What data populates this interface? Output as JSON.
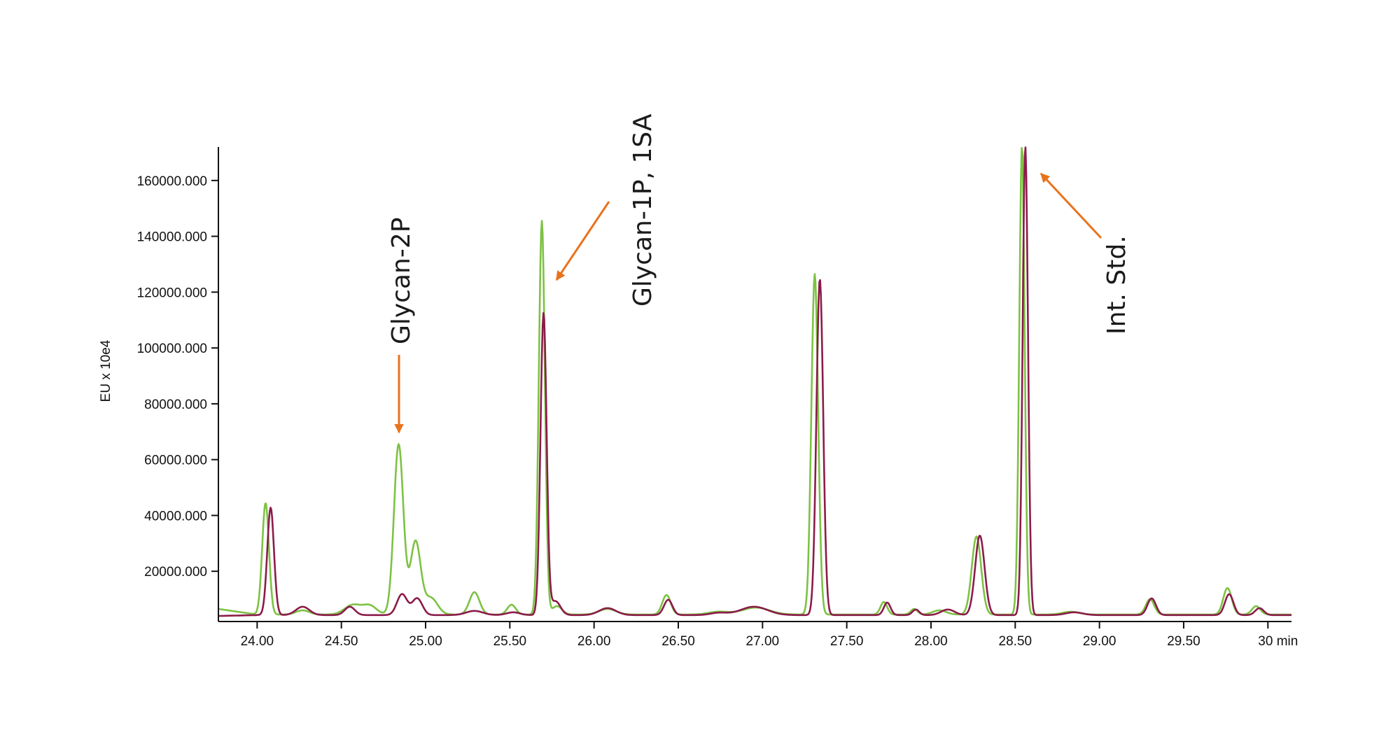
{
  "chart_data": {
    "type": "line",
    "title": "",
    "xlabel": "",
    "ylabel": "EU x 10e4",
    "x_unit": "min",
    "xlim": [
      23.77,
      30.14
    ],
    "ylim": [
      2000,
      172000
    ],
    "x_ticks": [
      {
        "value": 24.0,
        "label": "24.00"
      },
      {
        "value": 24.5,
        "label": "24.50"
      },
      {
        "value": 25.0,
        "label": "25.00"
      },
      {
        "value": 25.5,
        "label": "25.50"
      },
      {
        "value": 26.0,
        "label": "26.00"
      },
      {
        "value": 26.5,
        "label": "26.50"
      },
      {
        "value": 27.0,
        "label": "27.00"
      },
      {
        "value": 27.5,
        "label": "27.50"
      },
      {
        "value": 28.0,
        "label": "28.00"
      },
      {
        "value": 28.5,
        "label": "28.50"
      },
      {
        "value": 29.0,
        "label": "29.00"
      },
      {
        "value": 29.5,
        "label": "29.50"
      },
      {
        "value": 30.0,
        "label": "30 min"
      }
    ],
    "y_ticks": [
      {
        "value": 20000,
        "label": "20000.000"
      },
      {
        "value": 40000,
        "label": "40000.000"
      },
      {
        "value": 60000,
        "label": "60000.000"
      },
      {
        "value": 80000,
        "label": "80000.000"
      },
      {
        "value": 100000,
        "label": "100000.000"
      },
      {
        "value": 120000,
        "label": "120000.000"
      },
      {
        "value": 140000,
        "label": "140000.000"
      },
      {
        "value": 160000,
        "label": "160000.000"
      }
    ],
    "grid": false,
    "series": [
      {
        "color": "#7dc243",
        "baseline": 4500,
        "start_value": 6500,
        "end_value": 4300,
        "peaks": [
          {
            "x": 24.05,
            "h": 40000,
            "w": 0.02
          },
          {
            "x": 24.27,
            "h": 1500,
            "w": 0.04
          },
          {
            "x": 24.57,
            "h": 3500,
            "w": 0.05
          },
          {
            "x": 24.67,
            "h": 3000,
            "w": 0.04
          },
          {
            "x": 24.84,
            "h": 61000,
            "w": 0.028
          },
          {
            "x": 24.94,
            "h": 26000,
            "w": 0.03
          },
          {
            "x": 25.03,
            "h": 6000,
            "w": 0.04
          },
          {
            "x": 25.29,
            "h": 8000,
            "w": 0.03
          },
          {
            "x": 25.51,
            "h": 3500,
            "w": 0.025
          },
          {
            "x": 25.69,
            "h": 141000,
            "w": 0.018
          },
          {
            "x": 25.78,
            "h": 3000,
            "w": 0.03
          },
          {
            "x": 26.08,
            "h": 2000,
            "w": 0.05
          },
          {
            "x": 26.43,
            "h": 7000,
            "w": 0.025
          },
          {
            "x": 26.74,
            "h": 1000,
            "w": 0.06
          },
          {
            "x": 26.96,
            "h": 2500,
            "w": 0.08
          },
          {
            "x": 27.31,
            "h": 122000,
            "w": 0.02
          },
          {
            "x": 27.72,
            "h": 4500,
            "w": 0.02
          },
          {
            "x": 27.9,
            "h": 2000,
            "w": 0.02
          },
          {
            "x": 28.05,
            "h": 1500,
            "w": 0.04
          },
          {
            "x": 28.27,
            "h": 28000,
            "w": 0.028
          },
          {
            "x": 28.54,
            "h": 168000,
            "w": 0.016
          },
          {
            "x": 28.83,
            "h": 1000,
            "w": 0.05
          },
          {
            "x": 29.3,
            "h": 5500,
            "w": 0.025
          },
          {
            "x": 29.76,
            "h": 9500,
            "w": 0.025
          },
          {
            "x": 29.93,
            "h": 3000,
            "w": 0.025
          }
        ]
      },
      {
        "color": "#8b1c4a",
        "baseline": 4300,
        "start_value": 4000,
        "end_value": 4300,
        "peaks": [
          {
            "x": 24.08,
            "h": 38500,
            "w": 0.02
          },
          {
            "x": 24.27,
            "h": 3000,
            "w": 0.04
          },
          {
            "x": 24.55,
            "h": 3000,
            "w": 0.03
          },
          {
            "x": 24.86,
            "h": 7500,
            "w": 0.03
          },
          {
            "x": 24.95,
            "h": 6000,
            "w": 0.03
          },
          {
            "x": 25.29,
            "h": 1500,
            "w": 0.05
          },
          {
            "x": 25.52,
            "h": 1000,
            "w": 0.04
          },
          {
            "x": 25.7,
            "h": 108000,
            "w": 0.018
          },
          {
            "x": 25.77,
            "h": 5000,
            "w": 0.03
          },
          {
            "x": 26.08,
            "h": 2500,
            "w": 0.05
          },
          {
            "x": 26.44,
            "h": 5500,
            "w": 0.025
          },
          {
            "x": 26.74,
            "h": 800,
            "w": 0.05
          },
          {
            "x": 26.95,
            "h": 3000,
            "w": 0.08
          },
          {
            "x": 27.34,
            "h": 120500,
            "w": 0.02
          },
          {
            "x": 27.74,
            "h": 4500,
            "w": 0.02
          },
          {
            "x": 27.91,
            "h": 2000,
            "w": 0.02
          },
          {
            "x": 28.1,
            "h": 2000,
            "w": 0.04
          },
          {
            "x": 28.29,
            "h": 28500,
            "w": 0.028
          },
          {
            "x": 28.56,
            "h": 168000,
            "w": 0.016
          },
          {
            "x": 28.85,
            "h": 1000,
            "w": 0.05
          },
          {
            "x": 29.31,
            "h": 6000,
            "w": 0.025
          },
          {
            "x": 29.77,
            "h": 7500,
            "w": 0.025
          },
          {
            "x": 29.95,
            "h": 2500,
            "w": 0.025
          }
        ]
      }
    ],
    "annotations": [
      {
        "text": "Glycan-2P",
        "arrow_to": {
          "x": 24.83,
          "y": 68000
        },
        "arrow_color": "#e8731c"
      },
      {
        "text": "Glycan-1P, 1SA",
        "arrow_to": {
          "x": 25.75,
          "y": 122000
        },
        "arrow_color": "#e8731c"
      },
      {
        "text": "Int. Std.",
        "arrow_to": {
          "x": 28.63,
          "y": 162000
        },
        "arrow_color": "#e8731c"
      }
    ]
  }
}
